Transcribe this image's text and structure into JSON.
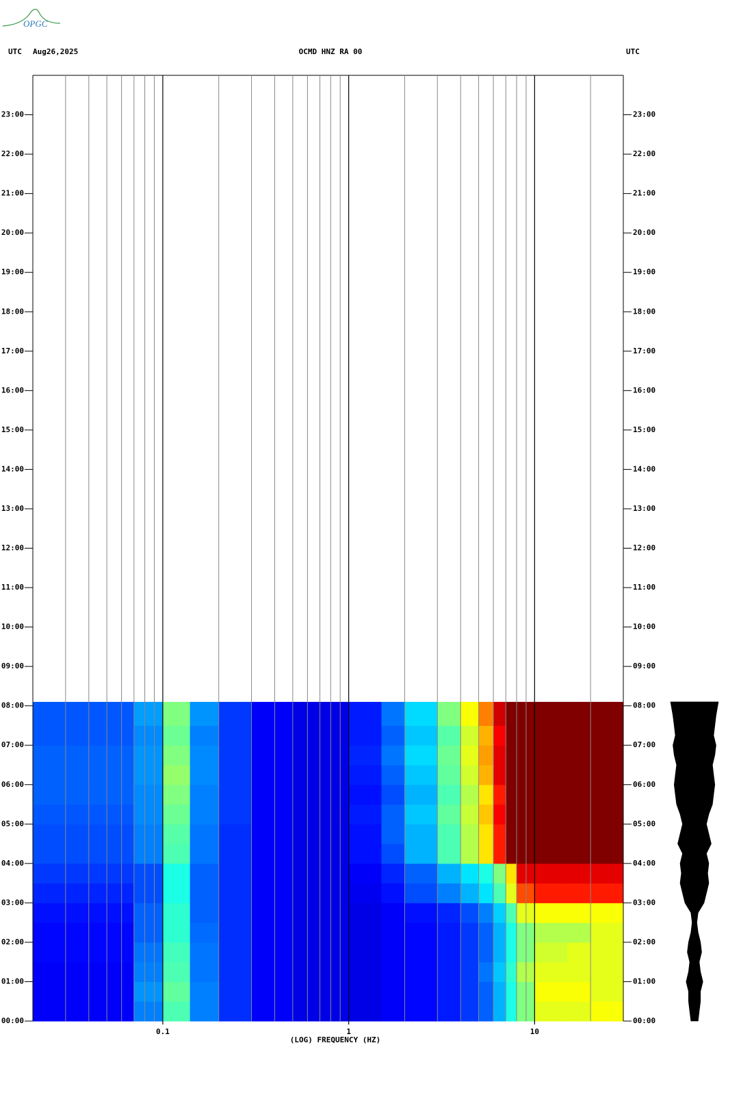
{
  "logo": "OPGC",
  "chart_data": {
    "type": "spectrogram",
    "left_title": "UTC",
    "date": "Aug26,2025",
    "title": "OCMD HNZ RA 00",
    "right_title": "UTC",
    "xlabel": "(LOG) FREQUENCY (HZ)",
    "xscale": "log",
    "xlim": [
      0.02,
      30
    ],
    "xticks": [
      0.1,
      1,
      10
    ],
    "xminor_ticks": [
      0.03,
      0.04,
      0.05,
      0.06,
      0.07,
      0.08,
      0.09,
      0.2,
      0.3,
      0.4,
      0.5,
      0.6,
      0.7,
      0.8,
      0.9,
      2,
      3,
      4,
      5,
      6,
      7,
      8,
      9,
      20
    ],
    "ylim": [
      0,
      24
    ],
    "yticks": [
      {
        "value": 0,
        "label": "00:00"
      },
      {
        "value": 1,
        "label": "01:00"
      },
      {
        "value": 2,
        "label": "02:00"
      },
      {
        "value": 3,
        "label": "03:00"
      },
      {
        "value": 4,
        "label": "04:00"
      },
      {
        "value": 5,
        "label": "05:00"
      },
      {
        "value": 6,
        "label": "06:00"
      },
      {
        "value": 7,
        "label": "07:00"
      },
      {
        "value": 8,
        "label": "08:00"
      },
      {
        "value": 9,
        "label": "09:00"
      },
      {
        "value": 10,
        "label": "10:00"
      },
      {
        "value": 11,
        "label": "11:00"
      },
      {
        "value": 12,
        "label": "12:00"
      },
      {
        "value": 13,
        "label": "13:00"
      },
      {
        "value": 14,
        "label": "14:00"
      },
      {
        "value": 15,
        "label": "15:00"
      },
      {
        "value": 16,
        "label": "16:00"
      },
      {
        "value": 17,
        "label": "17:00"
      },
      {
        "value": 18,
        "label": "18:00"
      },
      {
        "value": 19,
        "label": "19:00"
      },
      {
        "value": 20,
        "label": "20:00"
      },
      {
        "value": 21,
        "label": "21:00"
      },
      {
        "value": 22,
        "label": "22:00"
      },
      {
        "value": 23,
        "label": "23:00"
      }
    ],
    "colormap": "jet",
    "freq_bins": [
      0.02,
      0.07,
      0.1,
      0.14,
      0.2,
      0.3,
      0.5,
      1,
      1.5,
      2,
      3,
      4,
      5,
      6,
      7,
      8,
      10,
      15,
      20,
      30
    ],
    "time_bins": [
      0,
      0.5,
      1,
      1.5,
      2,
      2.5,
      3,
      3.5,
      4,
      4.5,
      5,
      5.5,
      6,
      6.5,
      7,
      7.5,
      8.1
    ],
    "z": [
      [
        0.12,
        0.25,
        0.45,
        0.25,
        0.17,
        0.12,
        0.1,
        0.1,
        0.12,
        0.13,
        0.15,
        0.18,
        0.22,
        0.3,
        0.4,
        0.5,
        0.6,
        0.6,
        0.62
      ],
      [
        0.12,
        0.27,
        0.47,
        0.25,
        0.17,
        0.12,
        0.1,
        0.1,
        0.12,
        0.13,
        0.15,
        0.18,
        0.22,
        0.3,
        0.4,
        0.5,
        0.62,
        0.62,
        0.6
      ],
      [
        0.12,
        0.25,
        0.45,
        0.24,
        0.17,
        0.12,
        0.1,
        0.1,
        0.12,
        0.13,
        0.15,
        0.18,
        0.24,
        0.32,
        0.42,
        0.55,
        0.6,
        0.6,
        0.6
      ],
      [
        0.13,
        0.24,
        0.44,
        0.24,
        0.17,
        0.12,
        0.1,
        0.1,
        0.12,
        0.13,
        0.15,
        0.18,
        0.22,
        0.3,
        0.4,
        0.5,
        0.58,
        0.6,
        0.6
      ],
      [
        0.13,
        0.22,
        0.42,
        0.23,
        0.17,
        0.12,
        0.1,
        0.1,
        0.12,
        0.13,
        0.15,
        0.18,
        0.22,
        0.3,
        0.4,
        0.5,
        0.55,
        0.55,
        0.6
      ],
      [
        0.14,
        0.22,
        0.42,
        0.22,
        0.17,
        0.12,
        0.1,
        0.1,
        0.12,
        0.14,
        0.16,
        0.2,
        0.25,
        0.33,
        0.45,
        0.6,
        0.62,
        0.62,
        0.62
      ],
      [
        0.16,
        0.2,
        0.4,
        0.22,
        0.17,
        0.12,
        0.1,
        0.11,
        0.14,
        0.2,
        0.25,
        0.3,
        0.35,
        0.45,
        0.6,
        0.8,
        0.85,
        0.85,
        0.85
      ],
      [
        0.18,
        0.2,
        0.4,
        0.22,
        0.17,
        0.12,
        0.1,
        0.12,
        0.16,
        0.22,
        0.3,
        0.35,
        0.4,
        0.5,
        0.65,
        0.9,
        0.9,
        0.9,
        0.9
      ],
      [
        0.2,
        0.25,
        0.45,
        0.24,
        0.17,
        0.12,
        0.1,
        0.14,
        0.2,
        0.3,
        0.45,
        0.55,
        0.65,
        0.85,
        1,
        1,
        1,
        1,
        1
      ],
      [
        0.2,
        0.25,
        0.46,
        0.24,
        0.17,
        0.12,
        0.1,
        0.14,
        0.22,
        0.3,
        0.45,
        0.55,
        0.65,
        0.85,
        1,
        1,
        1,
        1,
        1
      ],
      [
        0.21,
        0.26,
        0.48,
        0.25,
        0.18,
        0.12,
        0.1,
        0.15,
        0.22,
        0.32,
        0.47,
        0.57,
        0.68,
        0.88,
        1,
        1,
        1,
        1,
        1
      ],
      [
        0.22,
        0.26,
        0.5,
        0.25,
        0.18,
        0.12,
        0.1,
        0.14,
        0.2,
        0.3,
        0.45,
        0.55,
        0.65,
        0.85,
        1,
        1,
        1,
        1,
        1
      ],
      [
        0.22,
        0.27,
        0.52,
        0.26,
        0.18,
        0.12,
        0.1,
        0.15,
        0.22,
        0.32,
        0.47,
        0.58,
        0.7,
        0.9,
        1,
        1,
        1,
        1,
        1
      ],
      [
        0.22,
        0.27,
        0.5,
        0.26,
        0.18,
        0.12,
        0.1,
        0.16,
        0.24,
        0.34,
        0.48,
        0.6,
        0.72,
        0.9,
        1,
        1,
        1,
        1,
        1
      ],
      [
        0.21,
        0.26,
        0.48,
        0.25,
        0.18,
        0.12,
        0.1,
        0.15,
        0.22,
        0.32,
        0.46,
        0.58,
        0.7,
        0.88,
        1,
        1,
        1,
        1,
        1
      ],
      [
        0.21,
        0.28,
        0.5,
        0.27,
        0.18,
        0.12,
        0.1,
        0.15,
        0.24,
        0.34,
        0.5,
        0.62,
        0.75,
        0.92,
        1,
        1,
        1,
        1,
        1
      ]
    ],
    "trace": {
      "time": [
        0,
        0.25,
        0.5,
        0.75,
        1,
        1.25,
        1.5,
        1.75,
        2,
        2.25,
        2.5,
        2.75,
        3,
        3.25,
        3.5,
        3.75,
        4,
        4.25,
        4.5,
        4.75,
        5,
        5.25,
        5.5,
        5.75,
        6,
        6.25,
        6.5,
        6.75,
        7,
        7.25,
        7.5,
        7.75,
        8.1
      ],
      "amplitude": [
        0.15,
        0.2,
        0.25,
        0.25,
        0.35,
        0.25,
        0.2,
        0.3,
        0.25,
        0.15,
        0.1,
        0.15,
        0.4,
        0.5,
        0.6,
        0.55,
        0.6,
        0.5,
        0.7,
        0.6,
        0.5,
        0.6,
        0.75,
        0.8,
        0.85,
        0.8,
        0.75,
        0.85,
        0.9,
        0.8,
        0.85,
        0.9,
        1.0
      ],
      "color": "#000000"
    }
  }
}
